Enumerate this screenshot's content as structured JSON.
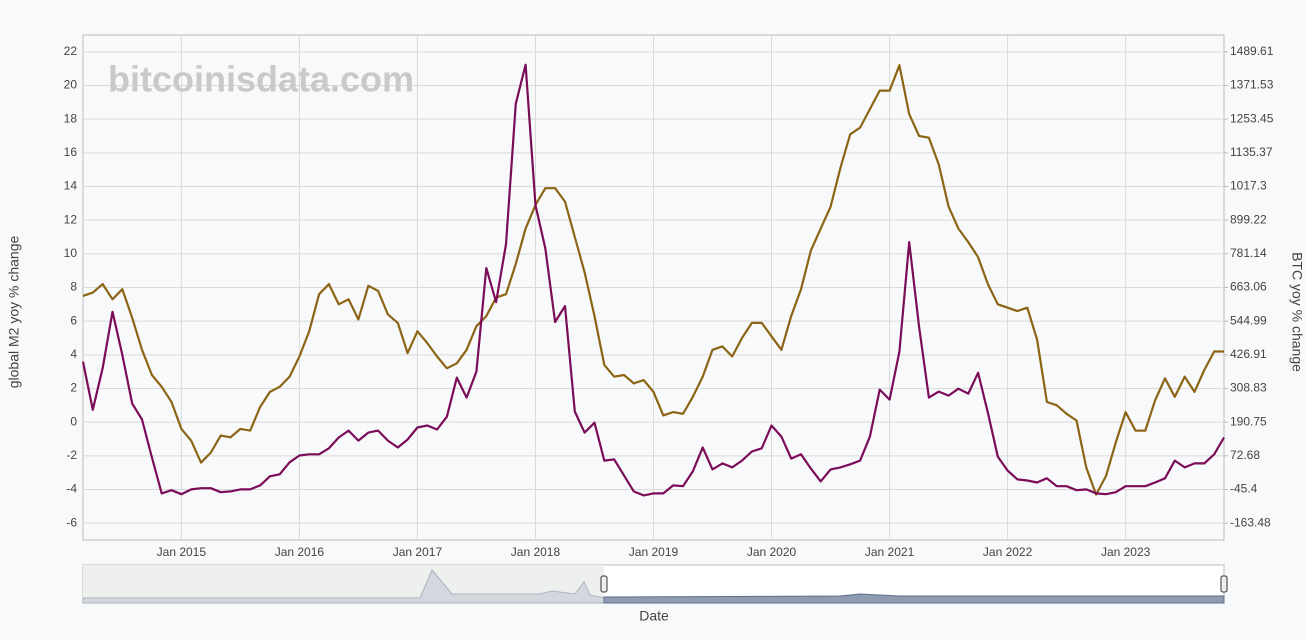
{
  "chart_data": {
    "type": "line",
    "annotation": "bitcoinisdata.com",
    "xlabel": "Date",
    "ylabel": "global M2 yoy % change",
    "y2label": "BTC yoy % change",
    "grid": true,
    "xlim": [
      "2014-03",
      "2023-11"
    ],
    "xticks": [
      {
        "value": "2015-01",
        "label": "Jan 2015"
      },
      {
        "value": "2016-01",
        "label": "Jan 2016"
      },
      {
        "value": "2017-01",
        "label": "Jan 2017"
      },
      {
        "value": "2018-01",
        "label": "Jan 2018"
      },
      {
        "value": "2019-01",
        "label": "Jan 2019"
      },
      {
        "value": "2020-01",
        "label": "Jan 2020"
      },
      {
        "value": "2021-01",
        "label": "Jan 2021"
      },
      {
        "value": "2022-01",
        "label": "Jan 2022"
      },
      {
        "value": "2023-01",
        "label": "Jan 2023"
      }
    ],
    "ylim": [
      -7,
      23
    ],
    "yticks": [
      -6,
      -4,
      -2,
      0,
      2,
      4,
      6,
      8,
      10,
      12,
      14,
      16,
      18,
      20,
      22
    ],
    "y2lim": [
      -222.53,
      1548.67
    ],
    "y2ticks": [
      -163.48,
      -45.4,
      72.68,
      190.75,
      308.83,
      426.91,
      544.99,
      663.06,
      781.14,
      899.22,
      1017.3,
      1135.37,
      1253.45,
      1371.53,
      1489.61
    ],
    "x": [
      "2014-03",
      "2014-04",
      "2014-05",
      "2014-06",
      "2014-07",
      "2014-08",
      "2014-09",
      "2014-10",
      "2014-11",
      "2014-12",
      "2015-01",
      "2015-02",
      "2015-03",
      "2015-04",
      "2015-05",
      "2015-06",
      "2015-07",
      "2015-08",
      "2015-09",
      "2015-10",
      "2015-11",
      "2015-12",
      "2016-01",
      "2016-02",
      "2016-03",
      "2016-04",
      "2016-05",
      "2016-06",
      "2016-07",
      "2016-08",
      "2016-09",
      "2016-10",
      "2016-11",
      "2016-12",
      "2017-01",
      "2017-02",
      "2017-03",
      "2017-04",
      "2017-05",
      "2017-06",
      "2017-07",
      "2017-08",
      "2017-09",
      "2017-10",
      "2017-11",
      "2017-12",
      "2018-01",
      "2018-02",
      "2018-03",
      "2018-04",
      "2018-05",
      "2018-06",
      "2018-07",
      "2018-08",
      "2018-09",
      "2018-10",
      "2018-11",
      "2018-12",
      "2019-01",
      "2019-02",
      "2019-03",
      "2019-04",
      "2019-05",
      "2019-06",
      "2019-07",
      "2019-08",
      "2019-09",
      "2019-10",
      "2019-11",
      "2019-12",
      "2020-01",
      "2020-02",
      "2020-03",
      "2020-04",
      "2020-05",
      "2020-06",
      "2020-07",
      "2020-08",
      "2020-09",
      "2020-10",
      "2020-11",
      "2020-12",
      "2021-01",
      "2021-02",
      "2021-03",
      "2021-04",
      "2021-05",
      "2021-06",
      "2021-07",
      "2021-08",
      "2021-09",
      "2021-10",
      "2021-11",
      "2021-12",
      "2022-01",
      "2022-02",
      "2022-03",
      "2022-04",
      "2022-05",
      "2022-06",
      "2022-07",
      "2022-08",
      "2022-09",
      "2022-10",
      "2022-11",
      "2022-12",
      "2023-01",
      "2023-02",
      "2023-03",
      "2023-04",
      "2023-05",
      "2023-06",
      "2023-07",
      "2023-08",
      "2023-09",
      "2023-10",
      "2023-11"
    ],
    "series": [
      {
        "color": "#8b6414",
        "values": [
          7.5,
          7.7,
          8.2,
          7.3,
          7.9,
          6.2,
          4.3,
          2.8,
          2.1,
          1.2,
          -0.4,
          -1.1,
          -2.4,
          -1.8,
          -0.8,
          -0.9,
          -0.4,
          -0.5,
          0.9,
          1.8,
          2.1,
          2.7,
          3.9,
          5.4,
          7.6,
          8.2,
          7.0,
          7.3,
          6.1,
          8.1,
          7.8,
          6.4,
          5.9,
          4.1,
          5.4,
          4.7,
          3.9,
          3.2,
          3.5,
          4.3,
          5.7,
          6.3,
          7.4,
          7.6,
          9.4,
          11.5,
          12.9,
          13.9,
          13.9,
          13.1,
          11.0,
          8.9,
          6.3,
          3.4,
          2.7,
          2.8,
          2.3,
          2.5,
          1.8,
          0.4,
          0.6,
          0.5,
          1.5,
          2.7,
          4.3,
          4.5,
          3.9,
          5.0,
          5.9,
          5.9,
          5.1,
          4.3,
          6.3,
          7.9,
          10.2,
          11.5,
          12.8,
          15.1,
          17.1,
          17.5,
          18.6,
          19.7,
          19.7,
          21.2,
          18.3,
          17.0,
          16.9,
          15.3,
          12.8,
          11.5,
          10.7,
          9.8,
          8.2,
          7.0,
          6.8,
          6.6,
          6.8,
          4.9,
          1.2,
          1.0,
          0.5,
          0.1,
          -2.7,
          -4.3,
          -3.2,
          -1.2,
          0.6,
          -0.5,
          -0.5,
          1.3,
          2.6,
          1.5,
          2.7,
          1.8,
          3.1,
          4.2,
          4.2
        ]
      },
      {
        "color": "#7a0c58",
        "axis": "y2",
        "values": [
          403,
          234,
          381,
          578,
          427,
          256,
          200,
          67,
          -59,
          -48,
          -62,
          -45,
          -41,
          -41,
          -55,
          -52,
          -45,
          -45,
          -31,
          1,
          8,
          50,
          74,
          78,
          78,
          99,
          137,
          161,
          126,
          154,
          161,
          126,
          102,
          130,
          172,
          179,
          165,
          210,
          347,
          277,
          368,
          731,
          612,
          815,
          1308,
          1444,
          951,
          801,
          542,
          598,
          228,
          154,
          189,
          56,
          60,
          4,
          -52,
          -66,
          -59,
          -59,
          -31,
          -34,
          18,
          102,
          25,
          46,
          32,
          56,
          88,
          99,
          179,
          140,
          63,
          78,
          28,
          -17,
          25,
          32,
          43,
          56,
          140,
          305,
          270,
          438,
          822,
          525,
          277,
          298,
          284,
          308,
          291,
          364,
          224,
          70,
          21,
          -10,
          -14,
          -21,
          -6,
          -34,
          -34,
          -48,
          -45,
          -59,
          -62,
          -55,
          -34,
          -34,
          -34,
          -21,
          -6,
          56,
          32,
          46,
          46,
          78,
          137
        ]
      }
    ]
  }
}
